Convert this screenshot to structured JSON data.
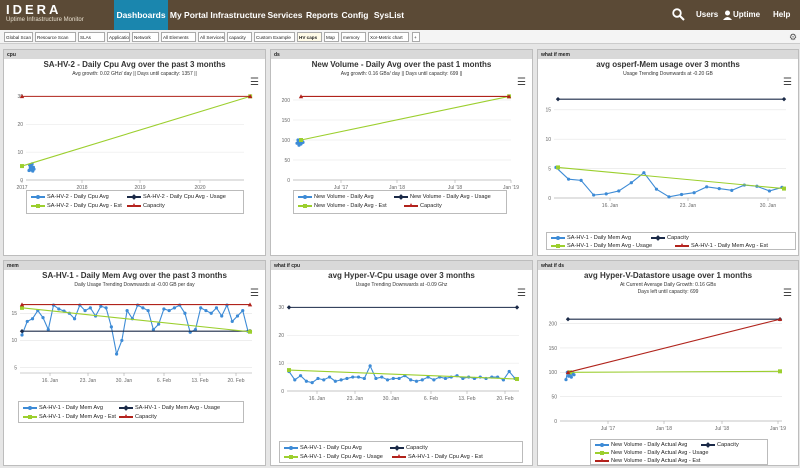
{
  "brand": {
    "name": "IDERA",
    "product": "Uptime Infrastructure Monitor"
  },
  "nav": [
    "Dashboards",
    "My Portal",
    "Infrastructure",
    "Services",
    "Reports",
    "Config",
    "SysList"
  ],
  "nav_active": 0,
  "topright": {
    "users": "Users",
    "uptime": "Uptime",
    "help": "Help",
    "search_icon": "search-icon",
    "user_icon": "user-icon",
    "gear_icon": "gear-icon"
  },
  "tabs": [
    "Global Scan",
    "Resource Scan",
    "SLAs",
    "Applications",
    "Network",
    "All Elements",
    "All Services",
    "capacity",
    "Custom Example",
    "HV caps",
    "Map",
    "memory",
    "Xor-Metric chart",
    "+"
  ],
  "active_tab": 9,
  "colors": {
    "blue": "#3d8bd6",
    "green": "#9ccf2e",
    "navy": "#1b2a48",
    "red": "#b0231b"
  },
  "panels": [
    {
      "header": "cpu",
      "title": "SA-HV-2 - Daily Cpu Avg over the past 3 months",
      "subtitle": [
        "Avg growth: 0.02 GHz/ day || Days until capacity: 1357 ||"
      ],
      "chart_data": {
        "type": "line",
        "x_ticks": [
          "2017",
          "2018",
          "2019",
          "2020"
        ],
        "y_ticks": [
          "0",
          "10",
          "20",
          "30"
        ],
        "ylim": [
          0,
          33
        ],
        "series": [
          {
            "name": "SA-HV-2 - Daily Cpu Avg",
            "color": "#3d8bd6",
            "marker": "circle",
            "values": [
              3.4,
              5.4,
              3.6,
              5.0,
              3.8,
              5.8,
              3.2,
              4.6,
              3.9
            ]
          },
          {
            "name": "SA-HV-2 - Daily Cpu Avg - Usage",
            "color": "#1b2a48",
            "marker": "diamond"
          },
          {
            "name": "SA-HV-2 - Daily Cpu Avg - Est",
            "color": "#9ccf2e",
            "marker": "square",
            "values": [
              [
                2017.0,
                5.0
              ],
              [
                2020.9,
                30.0
              ]
            ]
          },
          {
            "name": "Capacity",
            "color": "#b0231b",
            "marker": "triangle",
            "values": [
              [
                2017.0,
                30.0
              ],
              [
                2020.9,
                30.0
              ]
            ]
          }
        ]
      }
    },
    {
      "header": "ds",
      "title": "New Volume - Daily Avg over the past 1 months",
      "subtitle": [
        "Avg growth: 0.16 GBs/ day || Days until capacity: 699 ||"
      ],
      "chart_data": {
        "type": "line",
        "x_ticks": [
          "Jul '17",
          "Jan '18",
          "Jul '18",
          "Jan '19"
        ],
        "y_ticks": [
          "0",
          "50",
          "100",
          "150",
          "200"
        ],
        "ylim": [
          0,
          230
        ],
        "series": [
          {
            "name": "New Volume - Daily Avg",
            "color": "#3d8bd6",
            "marker": "circle",
            "values": [
              92,
              100,
              87,
              96,
              90,
              98,
              94
            ]
          },
          {
            "name": "New Volume - Daily Avg - Usage",
            "color": "#1b2a48",
            "marker": "diamond"
          },
          {
            "name": "New Volume - Daily Avg - Est",
            "color": "#9ccf2e",
            "marker": "square",
            "values": [
              [
                "Apr '17",
                100
              ],
              [
                "Jan '19",
                209
              ]
            ]
          },
          {
            "name": "Capacity",
            "color": "#b0231b",
            "marker": "triangle",
            "values": [
              [
                "Apr '17",
                209
              ],
              [
                "Jan '19",
                209
              ]
            ]
          }
        ]
      }
    },
    {
      "header": "what if mem",
      "title": "avg osperf-Mem usage over 3 months",
      "subtitle": [
        "Usage Trending Downwards at -0.20 GB"
      ],
      "chart_data": {
        "type": "line",
        "x_ticks": [
          "16. Jan",
          "23. Jan",
          "30. Jan"
        ],
        "y_ticks": [
          "0",
          "5",
          "10",
          "15"
        ],
        "ylim": [
          0,
          17
        ],
        "series": [
          {
            "name": "SA-HV-1 - Daily Mem Avg",
            "color": "#3d8bd6",
            "marker": "circle",
            "values": [
              5.2,
              3.2,
              3.0,
              0.5,
              0.7,
              1.2,
              2.6,
              4.3,
              1.5,
              0.2,
              0.6,
              0.9,
              1.9,
              1.6,
              1.3,
              2.2,
              2.0,
              1.2,
              1.8
            ]
          },
          {
            "name": "Capacity",
            "color": "#1b2a48",
            "marker": "diamond",
            "values": [
              16.8,
              16.8
            ]
          },
          {
            "name": "SA-HV-1 - Daily Mem Avg - Usage",
            "color": "#9ccf2e",
            "marker": "square",
            "values": [
              5.2,
              1.6
            ]
          },
          {
            "name": "SA-HV-1 - Daily Mem Avg - Est",
            "color": "#b0231b",
            "marker": "triangle"
          }
        ]
      }
    },
    {
      "header": "mem",
      "title": "SA-HV-1 - Daily Mem Avg over the past 3 months",
      "subtitle": [
        "Daily Usage Trending Downwards at -0.00 GB per day"
      ],
      "chart_data": {
        "type": "line",
        "x_ticks": [
          "16. Jan",
          "23. Jan",
          "30. Jan",
          "6. Feb",
          "13. Feb",
          "20. Feb"
        ],
        "y_ticks": [
          "5",
          "10",
          "15"
        ],
        "ylim": [
          4,
          18
        ],
        "series": [
          {
            "name": "SA-HV-1 - Daily Mem Avg",
            "color": "#3d8bd6",
            "marker": "circle",
            "values": [
              11.0,
              13.5,
              14.0,
              15.5,
              14.2,
              12.0,
              16.5,
              15.8,
              15.4,
              15.0,
              14.0,
              16.5,
              15.5,
              16.0,
              14.5,
              16.3,
              16.0,
              12.5,
              7.5,
              10.0,
              15.5,
              14.0,
              16.5,
              16.0,
              15.5,
              12.0,
              13.0,
              15.8,
              15.5,
              16.0,
              16.5,
              15.0,
              11.5,
              12.0,
              16.0,
              15.5,
              15.0,
              16.0,
              14.5,
              16.5,
              13.5,
              14.5,
              15.5,
              11.7
            ]
          },
          {
            "name": "SA-HV-1 - Daily Mem Avg - Usage",
            "color": "#1b2a48",
            "marker": "diamond",
            "values": [
              11.7,
              11.7
            ]
          },
          {
            "name": "SA-HV-1 - Daily Mem Avg - Est",
            "color": "#9ccf2e",
            "marker": "square",
            "values": [
              16.0,
              11.6
            ]
          },
          {
            "name": "Capacity",
            "color": "#b0231b",
            "marker": "triangle",
            "values": [
              16.6,
              16.6
            ]
          }
        ]
      }
    },
    {
      "header": "what if cpu",
      "title": "avg Hyper-V-Cpu usage over 3 months",
      "subtitle": [
        "Usage Trending Downwards at -0.09 Ghz"
      ],
      "chart_data": {
        "type": "line",
        "x_ticks": [
          "16. Jan",
          "23. Jan",
          "30. Jan",
          "6. Feb",
          "13. Feb",
          "20. Feb"
        ],
        "y_ticks": [
          "0",
          "10",
          "20",
          "30"
        ],
        "ylim": [
          0,
          33
        ],
        "series": [
          {
            "name": "SA-HV-1 - Daily Cpu Avg",
            "color": "#3d8bd6",
            "marker": "circle",
            "values": [
              7.0,
              4.0,
              5.5,
              3.5,
              3.0,
              4.5,
              4.0,
              5.0,
              3.5,
              4.0,
              4.5,
              5.0,
              5.0,
              4.5,
              9.0,
              4.5,
              5.0,
              4.0,
              4.5,
              4.5,
              5.5,
              4.0,
              3.5,
              4.0,
              5.0,
              4.0,
              5.0,
              4.5,
              5.0,
              5.5,
              4.5,
              5.0,
              4.5,
              5.0,
              4.5,
              5.0,
              5.0,
              4.0,
              7.0,
              4.5
            ]
          },
          {
            "name": "Capacity",
            "color": "#1b2a48",
            "marker": "diamond",
            "values": [
              30.0,
              30.0
            ]
          },
          {
            "name": "SA-HV-1 - Daily Cpu Avg - Usage",
            "color": "#9ccf2e",
            "marker": "square",
            "values": [
              7.5,
              4.3
            ]
          },
          {
            "name": "SA-HV-1 - Daily Cpu Avg - Est",
            "color": "#b0231b",
            "marker": "triangle"
          }
        ]
      }
    },
    {
      "header": "what if ds",
      "title": "avg Hyper-V-Datastore usage over 1 months",
      "subtitle": [
        "At Current Average Daily Growth: 0.16 GBs",
        "Days left until capacity: 699"
      ],
      "chart_data": {
        "type": "line",
        "x_ticks": [
          "Jul '17",
          "Jan '18",
          "Jul '18",
          "Jan '19"
        ],
        "y_ticks": [
          "0",
          "50",
          "100",
          "150",
          "200"
        ],
        "ylim": [
          0,
          230
        ],
        "series": [
          {
            "name": "New Volume - Daily Actual Avg",
            "color": "#3d8bd6",
            "marker": "circle",
            "values": [
              85,
              100,
              92,
              97,
              90,
              99,
              95
            ]
          },
          {
            "name": "Capacity",
            "color": "#1b2a48",
            "marker": "diamond",
            "values": [
              [
                "Apr '17",
                209
              ],
              [
                "Jan '19",
                209
              ]
            ]
          },
          {
            "name": "New Volume - Daily Actual Avg - Usage",
            "color": "#9ccf2e",
            "marker": "square",
            "values": [
              100,
              102
            ]
          },
          {
            "name": "New Volume - Daily Actual Avg - Est",
            "color": "#b0231b",
            "marker": "triangle",
            "values": [
              [
                "Apr '17",
                100
              ],
              [
                "Jan '19",
                209
              ]
            ]
          }
        ]
      }
    }
  ]
}
